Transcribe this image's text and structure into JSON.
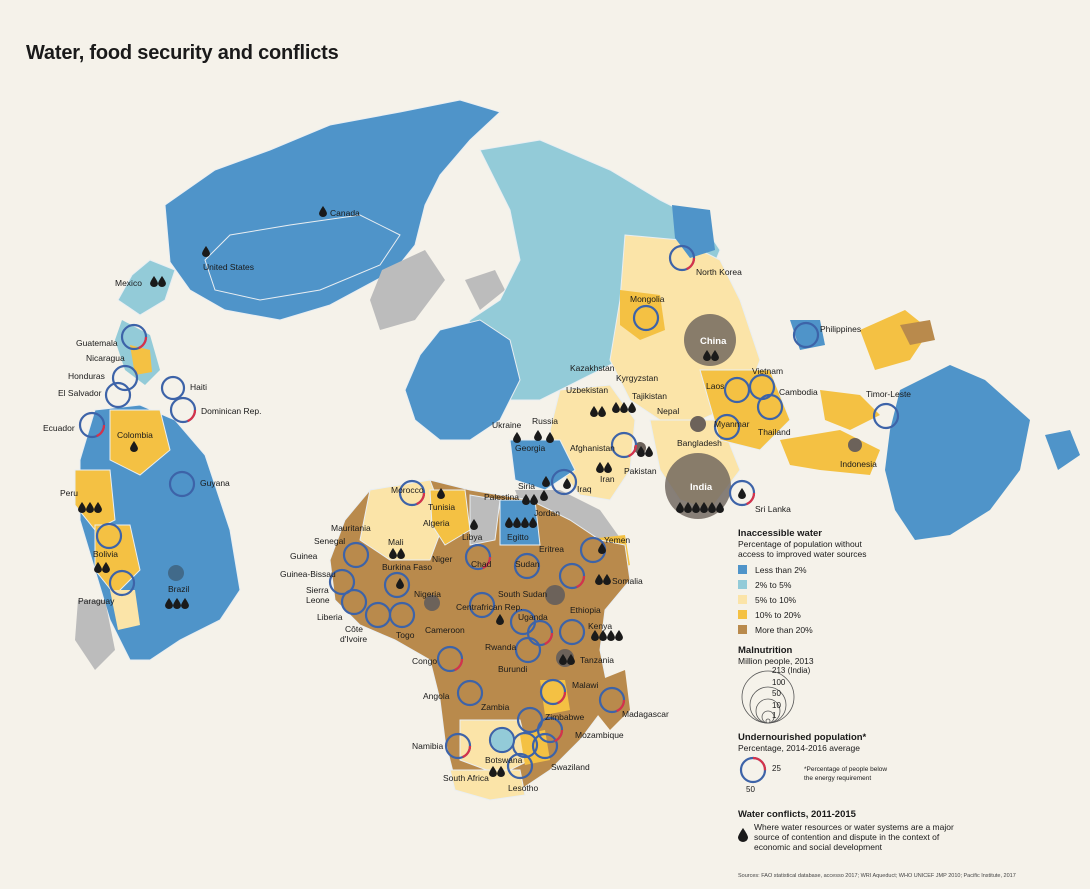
{
  "title": "Water, food security and conflicts",
  "colors": {
    "background": "#f5f2ea",
    "less_than_2": "#4f94c9",
    "from_2_to_5": "#93cbd8",
    "from_5_to_10": "#fbe4a8",
    "from_10_to_20": "#f4c143",
    "more_than_20": "#b98a4c",
    "no_data": "#bcbcbc",
    "malnutrition_circle": "#6c625a",
    "undernourished_ring_blue": "#3d63a8",
    "undernourished_ring_red": "#d6324a"
  },
  "countries": {
    "canada": "Canada",
    "united_states": "United States",
    "mexico": "Mexico",
    "guatemala": "Guatemala",
    "nicaragua": "Nicaragua",
    "honduras": "Honduras",
    "el_salvador": "El Salvador",
    "haiti": "Haiti",
    "dominican_rep": "Dominican Rep.",
    "ecuador": "Ecuador",
    "colombia": "Colombia",
    "guyana": "Guyana",
    "peru": "Peru",
    "bolivia": "Bolivia",
    "paraguay": "Paraguay",
    "brazil": "Brazil",
    "north_korea": "North Korea",
    "mongolia": "Mongolia",
    "china": "China",
    "philippines": "Philippines",
    "vietnam": "Vietnam",
    "laos": "Laos",
    "cambodia": "Cambodia",
    "timor_leste": "Timor-Leste",
    "thailand": "Thailand",
    "myanmar": "Myanmar",
    "bangladesh": "Bangladesh",
    "nepal": "Nepal",
    "indonesia": "Indonesia",
    "india": "India",
    "sri_lanka": "Sri Lanka",
    "kazakhstan": "Kazakhstan",
    "kyrgyzstan": "Kyrgyzstan",
    "uzbekistan": "Uzbekistan",
    "tajikistan": "Tajikistan",
    "russia": "Russia",
    "ukraine": "Ukraine",
    "georgia": "Georgia",
    "afghanistan": "Afghanistan",
    "pakistan": "Pakistan",
    "iran": "Iran",
    "iraq": "Iraq",
    "siria": "Siria",
    "palestina": "Palestina",
    "jordan": "Jordan",
    "egitto": "Egitto",
    "libya": "Libya",
    "tunisia": "Tunisia",
    "morocco": "Morocco",
    "algeria": "Algeria",
    "mauritania": "Mauritania",
    "senegal": "Senegal",
    "mali": "Mali",
    "guinea": "Guinea",
    "guinea_bissau": "Guinea-Bissau",
    "burkina_faso": "Burkina Faso",
    "niger": "Niger",
    "chad": "Chad",
    "sudan": "Sudan",
    "eritrea": "Eritrea",
    "yemen": "Yemen",
    "somalia": "Somalia",
    "sierra_leone_1": "Sierra",
    "sierra_leone_2": "Leone",
    "liberia": "Liberia",
    "cote_1": "Côte",
    "cote_2": "d'Ivoire",
    "togo": "Togo",
    "nigeria": "Nigeria",
    "central_african_rep": "Centrafrican Rep.",
    "south_sudan": "South Sudan",
    "ethiopia": "Ethiopia",
    "cameroon": "Cameroon",
    "uganda": "Uganda",
    "kenya": "Kenya",
    "congo": "Congo",
    "rwanda": "Rwanda",
    "burundi": "Burundi",
    "tanzania": "Tanzania",
    "angola": "Angola",
    "malawi": "Malawi",
    "zambia": "Zambia",
    "zimbabwe": "Zimbabwe",
    "madagascar": "Madagascar",
    "mozambique": "Mozambique",
    "namibia": "Namibia",
    "botswana": "Botswana",
    "swaziland": "Swaziland",
    "south_africa": "South Africa",
    "lesotho": "Lesotho"
  },
  "legend": {
    "water_title": "Inaccessible water",
    "water_sub_1": "Percentage of population without",
    "water_sub_2": "access to improved water sources",
    "water_classes": [
      {
        "label": "Less than 2%",
        "color": "#4f94c9"
      },
      {
        "label": "2% to 5%",
        "color": "#93cbd8"
      },
      {
        "label": "5% to 10%",
        "color": "#fbe4a8"
      },
      {
        "label": "10% to 20%",
        "color": "#f4c143"
      },
      {
        "label": "More than 20%",
        "color": "#b98a4c"
      }
    ],
    "malnutrition_title": "Malnutrition",
    "malnutrition_sub": "Million people, 2013",
    "malnutrition_values": [
      "213 (India)",
      "100",
      "50",
      "10",
      "1"
    ],
    "under_title": "Undernourished population*",
    "under_sub": "Percentage, 2014-2016 average",
    "under_values": [
      "25",
      "50"
    ],
    "under_note_1": "*Percentage of people below",
    "under_note_2": "the energy requirement",
    "conflict_title": "Water conflicts, 2011-2015",
    "conflict_text_1": "Where water resources or water systems are a major",
    "conflict_text_2": "source of contention and dispute in the context of",
    "conflict_text_3": "economic and social development"
  },
  "sources": "Sources: FAO statistical database, accesso 2017; WRI Aqueduct; WHO UNICEF JMP 2010; Pacific Institute, 2017"
}
